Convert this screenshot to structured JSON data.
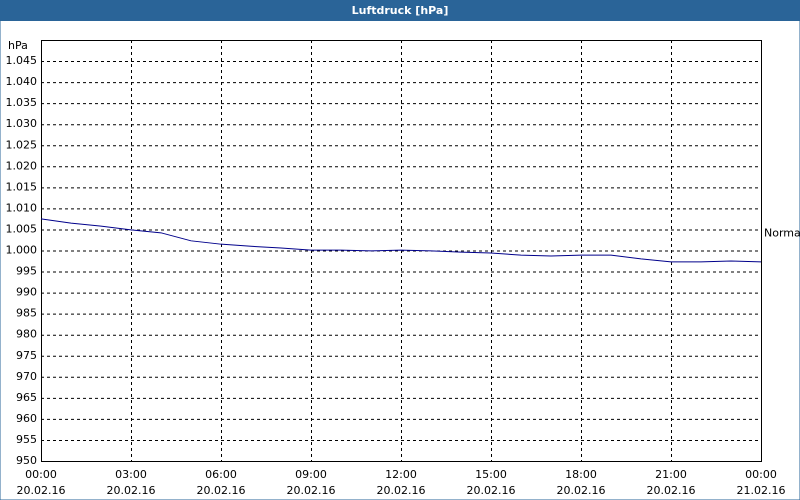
{
  "chart_data": {
    "type": "line",
    "title": "Luftdruck [hPa]",
    "y_unit": "hPa",
    "x": [
      0,
      1,
      2,
      3,
      4,
      5,
      6,
      7,
      8,
      9,
      10,
      11,
      12,
      13,
      14,
      15,
      16,
      17,
      18,
      19,
      20,
      21,
      22,
      23,
      24
    ],
    "series": [
      {
        "name": "Luftdruck",
        "color": "#00008b",
        "values": [
          1007.5,
          1006.5,
          1005.8,
          1004.9,
          1004.2,
          1002.3,
          1001.5,
          1001.0,
          1000.6,
          1000.1,
          1000.1,
          999.9,
          1000.1,
          999.9,
          999.6,
          999.4,
          998.9,
          998.7,
          998.9,
          998.9,
          998.0,
          997.3,
          997.3,
          997.5,
          997.3
        ]
      }
    ],
    "xlim": [
      0,
      24
    ],
    "xticks": [
      {
        "value": 0,
        "label": "00:00"
      },
      {
        "value": 3,
        "label": "03:00"
      },
      {
        "value": 6,
        "label": "06:00"
      },
      {
        "value": 9,
        "label": "09:00"
      },
      {
        "value": 12,
        "label": "12:00"
      },
      {
        "value": 15,
        "label": "15:00"
      },
      {
        "value": 18,
        "label": "18:00"
      },
      {
        "value": 21,
        "label": "21:00"
      },
      {
        "value": 24,
        "label": "00:00"
      }
    ],
    "xtick_dates": [
      "20.02.16",
      "20.02.16",
      "20.02.16",
      "20.02.16",
      "20.02.16",
      "20.02.16",
      "20.02.16",
      "20.02.16",
      "21.02.16"
    ],
    "ylim": [
      950,
      1050
    ],
    "yticks": [
      950,
      955,
      960,
      965,
      970,
      975,
      980,
      985,
      990,
      995,
      {
        "value": 1000,
        "label": "1.000"
      },
      {
        "value": 1005,
        "label": "1.005"
      },
      {
        "value": 1010,
        "label": "1.010"
      },
      {
        "value": 1015,
        "label": "1.015"
      },
      {
        "value": 1020,
        "label": "1.020"
      },
      {
        "value": 1025,
        "label": "1.025"
      },
      {
        "value": 1030,
        "label": "1.030"
      },
      {
        "value": 1035,
        "label": "1.035"
      },
      {
        "value": 1040,
        "label": "1.040"
      },
      {
        "value": 1045,
        "label": "1.045"
      }
    ],
    "grid": true,
    "annotation": {
      "text": "Normal",
      "y": 1004
    }
  }
}
